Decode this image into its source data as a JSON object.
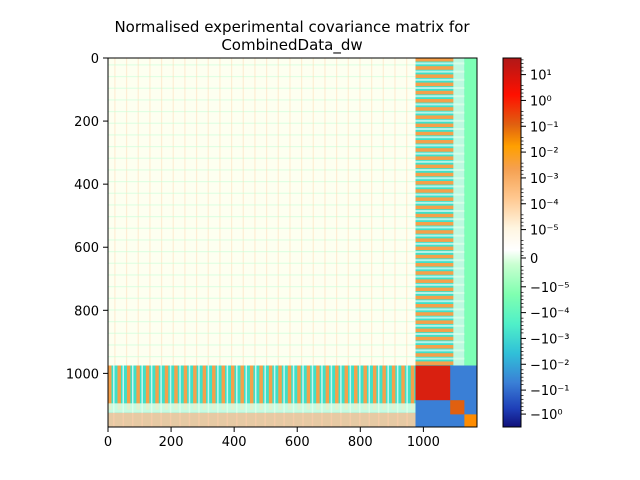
{
  "chart_data": {
    "type": "heatmap",
    "title_line1": "Normalised experimental covariance matrix for",
    "title_line2": "CombinedData_dw",
    "xlabel": "",
    "ylabel": "",
    "matrix_size": 1170,
    "block_boundary": 975,
    "xlim": [
      0,
      1170
    ],
    "ylim": [
      1170,
      0
    ],
    "xticks": [
      0,
      200,
      400,
      600,
      800,
      1000
    ],
    "yticks": [
      0,
      200,
      400,
      600,
      800,
      1000
    ],
    "color_scale": "symlog",
    "colorbar": {
      "min_label": "−10⁰",
      "ticks": [
        {
          "pos": 0.955,
          "label": "10¹"
        },
        {
          "pos": 0.885,
          "label": "10⁰"
        },
        {
          "pos": 0.815,
          "label": "10⁻¹"
        },
        {
          "pos": 0.745,
          "label": "10⁻²"
        },
        {
          "pos": 0.675,
          "label": "10⁻³"
        },
        {
          "pos": 0.605,
          "label": "10⁻⁴"
        },
        {
          "pos": 0.535,
          "label": "10⁻⁵"
        },
        {
          "pos": 0.458,
          "label": "0"
        },
        {
          "pos": 0.38,
          "label": "−10⁻⁵"
        },
        {
          "pos": 0.31,
          "label": "−10⁻⁴"
        },
        {
          "pos": 0.24,
          "label": "−10⁻³"
        },
        {
          "pos": 0.17,
          "label": "−10⁻²"
        },
        {
          "pos": 0.1,
          "label": "−10⁻¹"
        },
        {
          "pos": 0.035,
          "label": "−10⁰"
        }
      ]
    },
    "colors": {
      "background_block": "#fdfff0",
      "negative_small": "#7dffb5",
      "negative_mid": "#3fe0c8",
      "positive_mid": "#f5a04a",
      "positive_high": "#ff8c00",
      "diag_high": "#d92010",
      "diag_neg": "#3a7fd6"
    }
  }
}
